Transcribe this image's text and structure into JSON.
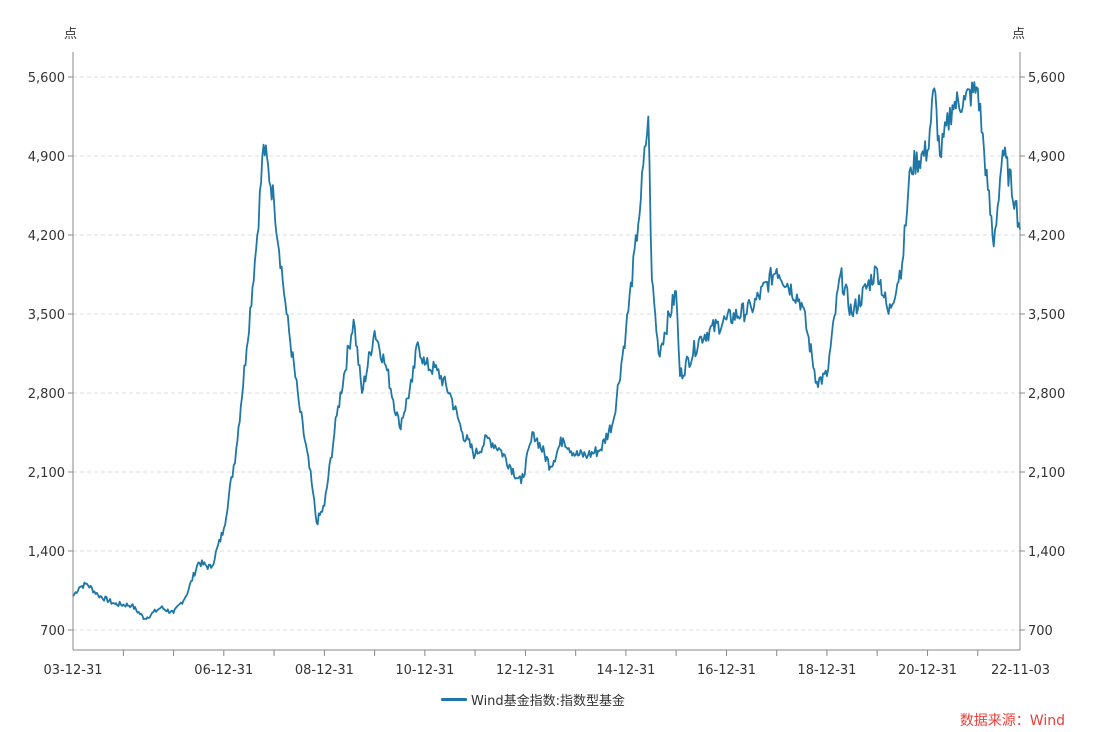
{
  "chart_data": {
    "type": "line",
    "y_unit_left": "点",
    "y_unit_right": "点",
    "ylim": [
      700,
      5600
    ],
    "y_ticks": [
      "700",
      "1,400",
      "2,100",
      "2,800",
      "3,500",
      "4,200",
      "4,900",
      "5,600"
    ],
    "y_tick_values": [
      700,
      1400,
      2100,
      2800,
      3500,
      4200,
      4900,
      5600
    ],
    "x_start": "2003-12-31",
    "x_end": "2022-11-03",
    "x_tick_labels": [
      {
        "label": "03-12-31",
        "date": "2003-12-31"
      },
      {
        "label": "06-12-31",
        "date": "2006-12-31"
      },
      {
        "label": "08-12-31",
        "date": "2008-12-31"
      },
      {
        "label": "10-12-31",
        "date": "2010-12-31"
      },
      {
        "label": "12-12-31",
        "date": "2012-12-31"
      },
      {
        "label": "14-12-31",
        "date": "2014-12-31"
      },
      {
        "label": "16-12-31",
        "date": "2016-12-31"
      },
      {
        "label": "18-12-31",
        "date": "2018-12-31"
      },
      {
        "label": "20-12-31",
        "date": "2020-12-31"
      },
      {
        "label": "22-11-03",
        "date": "2022-11-03"
      }
    ],
    "grid": true,
    "legend_position": "bottom-center",
    "series": [
      {
        "name": "Wind基金指数:指数型基金",
        "color": "#1f77a6",
        "points": [
          [
            "2003-12-31",
            1000
          ],
          [
            "2004-02-15",
            1080
          ],
          [
            "2004-04-10",
            1110
          ],
          [
            "2004-06-30",
            1010
          ],
          [
            "2004-10-31",
            930
          ],
          [
            "2005-02-28",
            920
          ],
          [
            "2005-06-05",
            800
          ],
          [
            "2005-09-30",
            900
          ],
          [
            "2005-12-31",
            850
          ],
          [
            "2006-03-31",
            1000
          ],
          [
            "2006-06-30",
            1300
          ],
          [
            "2006-09-30",
            1250
          ],
          [
            "2006-12-31",
            1600
          ],
          [
            "2007-03-31",
            2300
          ],
          [
            "2007-06-15",
            3200
          ],
          [
            "2007-08-31",
            4200
          ],
          [
            "2007-10-16",
            5000
          ],
          [
            "2007-12-31",
            4500
          ],
          [
            "2008-03-31",
            3500
          ],
          [
            "2008-06-30",
            2700
          ],
          [
            "2008-09-30",
            2000
          ],
          [
            "2008-11-04",
            1650
          ],
          [
            "2008-12-31",
            1800
          ],
          [
            "2009-03-31",
            2600
          ],
          [
            "2009-07-31",
            3450
          ],
          [
            "2009-09-30",
            2800
          ],
          [
            "2009-12-31",
            3350
          ],
          [
            "2010-03-31",
            3000
          ],
          [
            "2010-06-30",
            2500
          ],
          [
            "2010-09-30",
            2900
          ],
          [
            "2010-11-10",
            3250
          ],
          [
            "2010-12-31",
            3050
          ],
          [
            "2011-03-31",
            3000
          ],
          [
            "2011-06-30",
            2800
          ],
          [
            "2011-09-30",
            2450
          ],
          [
            "2011-12-31",
            2250
          ],
          [
            "2012-03-31",
            2400
          ],
          [
            "2012-06-30",
            2300
          ],
          [
            "2012-11-30",
            2000
          ],
          [
            "2013-02-28",
            2450
          ],
          [
            "2013-06-30",
            2150
          ],
          [
            "2013-09-30",
            2400
          ],
          [
            "2013-12-31",
            2250
          ],
          [
            "2014-03-31",
            2250
          ],
          [
            "2014-06-30",
            2300
          ],
          [
            "2014-09-30",
            2550
          ],
          [
            "2014-12-31",
            3350
          ],
          [
            "2015-03-31",
            4300
          ],
          [
            "2015-06-12",
            5250
          ],
          [
            "2015-07-08",
            3800
          ],
          [
            "2015-08-26",
            3150
          ],
          [
            "2015-12-31",
            3700
          ],
          [
            "2016-01-28",
            2950
          ],
          [
            "2016-06-30",
            3300
          ],
          [
            "2016-12-31",
            3450
          ],
          [
            "2017-06-30",
            3550
          ],
          [
            "2017-12-31",
            3900
          ],
          [
            "2018-06-30",
            3600
          ],
          [
            "2018-10-18",
            2900
          ],
          [
            "2018-12-31",
            2950
          ],
          [
            "2019-04-08",
            3850
          ],
          [
            "2019-06-30",
            3500
          ],
          [
            "2019-12-31",
            3900
          ],
          [
            "2020-03-23",
            3500
          ],
          [
            "2020-06-30",
            3950
          ],
          [
            "2020-08-31",
            4800
          ],
          [
            "2020-12-31",
            4950
          ],
          [
            "2021-02-18",
            5500
          ],
          [
            "2021-03-31",
            4900
          ],
          [
            "2021-06-30",
            5350
          ],
          [
            "2021-09-30",
            5400
          ],
          [
            "2021-12-31",
            5500
          ],
          [
            "2022-03-15",
            4600
          ],
          [
            "2022-04-26",
            4100
          ],
          [
            "2022-06-30",
            4950
          ],
          [
            "2022-09-30",
            4500
          ],
          [
            "2022-11-03",
            4250
          ]
        ]
      }
    ]
  },
  "legend": {
    "label": "Wind基金指数:指数型基金"
  },
  "source": {
    "text": "数据来源：Wind",
    "color": "#e8413b"
  },
  "colors": {
    "axis": "#888888",
    "grid": "#dddddd",
    "text": "#333333"
  }
}
